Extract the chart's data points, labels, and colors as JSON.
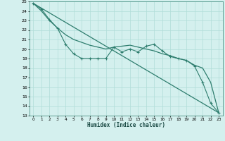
{
  "xlabel": "Humidex (Indice chaleur)",
  "bg_color": "#d4f0ee",
  "grid_color": "#b0ddd8",
  "line_color": "#2e7d6e",
  "xlim": [
    -0.5,
    23.5
  ],
  "ylim": [
    13,
    25
  ],
  "x_ticks": [
    0,
    1,
    2,
    3,
    4,
    5,
    6,
    7,
    8,
    9,
    10,
    11,
    12,
    13,
    14,
    15,
    16,
    17,
    18,
    19,
    20,
    21,
    22,
    23
  ],
  "y_ticks": [
    13,
    14,
    15,
    16,
    17,
    18,
    19,
    20,
    21,
    22,
    23,
    24,
    25
  ],
  "line1_x": [
    0,
    1,
    2,
    3,
    4,
    5,
    6,
    7,
    8,
    9,
    10,
    11,
    12,
    13,
    14,
    15,
    16,
    17,
    18,
    19,
    20,
    21,
    22,
    23
  ],
  "line1_y": [
    24.8,
    24.2,
    23.1,
    22.2,
    20.5,
    19.5,
    19.0,
    19.0,
    19.0,
    19.0,
    20.2,
    19.7,
    20.0,
    19.7,
    20.3,
    20.5,
    19.8,
    19.2,
    19.0,
    18.8,
    18.2,
    16.5,
    14.3,
    13.3
  ],
  "line2_x": [
    0,
    1,
    2,
    3,
    4,
    5,
    6,
    7,
    8,
    9,
    10,
    11,
    12,
    13,
    14,
    15,
    16,
    17,
    18,
    19,
    20,
    21,
    22,
    23
  ],
  "line2_y": [
    24.8,
    24.0,
    23.0,
    22.2,
    21.5,
    21.0,
    20.7,
    20.4,
    20.2,
    20.0,
    20.2,
    20.3,
    20.4,
    20.2,
    20.0,
    19.8,
    19.5,
    19.3,
    19.0,
    18.8,
    18.3,
    18.0,
    16.5,
    13.3
  ],
  "line3_x": [
    0,
    23
  ],
  "line3_y": [
    24.8,
    13.3
  ]
}
